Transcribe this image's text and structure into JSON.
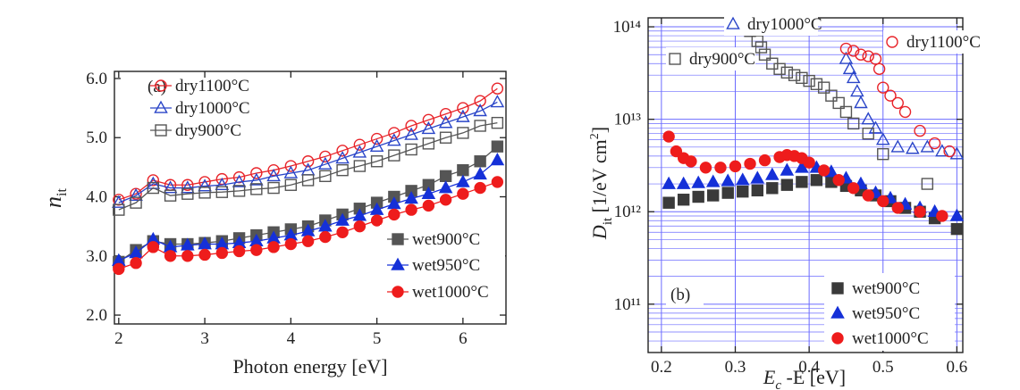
{
  "chart_data": [
    {
      "type": "line",
      "annotation": "(a)",
      "xlabel": "Photon energy [eV]",
      "ylabel": "n",
      "ylabel_sub": "it",
      "xlim": [
        1.95,
        6.5
      ],
      "ylim": [
        1.85,
        6.12
      ],
      "xticks": [
        2,
        3,
        4,
        5,
        6
      ],
      "yticks": [
        {
          "value": 2,
          "label": "2.0"
        },
        {
          "value": 3,
          "label": "3.0"
        },
        {
          "value": 4,
          "label": "4.0"
        },
        {
          "value": 5,
          "label": "5.0"
        },
        {
          "value": 6,
          "label": "6.0"
        }
      ],
      "grid": false,
      "x": [
        2.0,
        2.2,
        2.4,
        2.6,
        2.8,
        3.0,
        3.2,
        3.4,
        3.6,
        3.8,
        4.0,
        4.2,
        4.4,
        4.6,
        4.8,
        5.0,
        5.2,
        5.4,
        5.6,
        5.8,
        6.0,
        6.2,
        6.4
      ],
      "series": [
        {
          "name": "dry1100°C",
          "color": "#e8242a",
          "marker": "circle",
          "filled": false,
          "values": [
            3.95,
            4.05,
            4.28,
            4.2,
            4.2,
            4.25,
            4.3,
            4.33,
            4.4,
            4.45,
            4.52,
            4.6,
            4.68,
            4.78,
            4.88,
            4.98,
            5.08,
            5.2,
            5.3,
            5.4,
            5.5,
            5.62,
            5.83
          ]
        },
        {
          "name": "dry1000°C",
          "color": "#2a45c8",
          "marker": "triangle",
          "filled": false,
          "values": [
            3.9,
            4.02,
            4.22,
            4.15,
            4.15,
            4.18,
            4.2,
            4.25,
            4.28,
            4.35,
            4.4,
            4.45,
            4.55,
            4.65,
            4.75,
            4.85,
            4.95,
            5.05,
            5.15,
            5.25,
            5.35,
            5.45,
            5.6
          ]
        },
        {
          "name": "dry900°C",
          "color": "#555555",
          "marker": "square",
          "filled": false,
          "values": [
            3.78,
            3.9,
            4.15,
            4.02,
            4.05,
            4.07,
            4.08,
            4.1,
            4.13,
            4.15,
            4.2,
            4.28,
            4.35,
            4.45,
            4.52,
            4.6,
            4.7,
            4.8,
            4.9,
            5.0,
            5.08,
            5.2,
            5.25
          ]
        },
        {
          "name": "wet900°C",
          "color": "#555555",
          "marker": "square",
          "filled": true,
          "values": [
            2.9,
            3.1,
            3.25,
            3.2,
            3.2,
            3.22,
            3.25,
            3.3,
            3.35,
            3.4,
            3.45,
            3.5,
            3.6,
            3.7,
            3.8,
            3.9,
            4.0,
            4.1,
            4.2,
            4.35,
            4.45,
            4.6,
            4.85
          ]
        },
        {
          "name": "wet950°C",
          "color": "#1530d8",
          "marker": "triangle",
          "filled": true,
          "values": [
            2.92,
            3.05,
            3.28,
            3.15,
            3.18,
            3.2,
            3.2,
            3.22,
            3.25,
            3.3,
            3.35,
            3.42,
            3.5,
            3.6,
            3.68,
            3.78,
            3.88,
            3.97,
            4.05,
            4.15,
            4.25,
            4.38,
            4.62
          ]
        },
        {
          "name": "wet1000°C",
          "color": "#ee1c1c",
          "marker": "circle",
          "filled": true,
          "values": [
            2.78,
            2.88,
            3.15,
            3.0,
            3.0,
            3.02,
            3.05,
            3.08,
            3.1,
            3.15,
            3.2,
            3.25,
            3.32,
            3.4,
            3.5,
            3.6,
            3.7,
            3.78,
            3.85,
            3.95,
            4.05,
            4.15,
            4.25
          ]
        }
      ]
    },
    {
      "type": "scatter",
      "annotation": "(b)",
      "xlabel": "E",
      "xlabel_sub": "c",
      "xlabel_rest": " -E [eV]",
      "ylabel": "D",
      "ylabel_sub": "it",
      "ylabel_rest": " [1/eV cm",
      "ylabel_sup": "2",
      "ylabel_end": "]",
      "xlim": [
        0.182,
        0.608
      ],
      "ylim": [
        30000000000,
        125000000000000
      ],
      "log_y": true,
      "xticks": [
        0.2,
        0.3,
        0.4,
        0.5,
        0.6
      ],
      "yticks": [
        {
          "value": 100000000000,
          "label": "10¹¹"
        },
        {
          "value": 1000000000000,
          "label": "10¹²"
        },
        {
          "value": 10000000000000,
          "label": "10¹³"
        },
        {
          "value": 100000000000000,
          "label": "10¹⁴"
        }
      ],
      "grid": true,
      "grid_color": "#6b6bff",
      "series": [
        {
          "name": "dry1000°C",
          "color": "#2a45c8",
          "marker": "triangle",
          "filled": false,
          "x": [
            0.45,
            0.455,
            0.46,
            0.465,
            0.47,
            0.48,
            0.49,
            0.5,
            0.52,
            0.54,
            0.56,
            0.58,
            0.6
          ],
          "values": [
            45000000000000,
            35000000000000,
            28000000000000,
            20000000000000,
            15000000000000,
            10000000000000,
            8000000000000,
            6000000000000,
            5000000000000,
            4800000000000,
            5000000000000,
            4500000000000,
            4200000000000
          ]
        },
        {
          "name": "dry1100°C",
          "color": "#e8242a",
          "marker": "circle",
          "filled": false,
          "x": [
            0.45,
            0.46,
            0.47,
            0.48,
            0.49,
            0.495,
            0.5,
            0.51,
            0.52,
            0.53,
            0.55,
            0.57,
            0.59
          ],
          "values": [
            58000000000000,
            55000000000000,
            50000000000000,
            48000000000000,
            45000000000000,
            35000000000000,
            22000000000000,
            18000000000000,
            15000000000000,
            12000000000000,
            7500000000000,
            5500000000000,
            4500000000000
          ]
        },
        {
          "name": "dry900°C",
          "color": "#555555",
          "marker": "square",
          "filled": false,
          "x": [
            0.32,
            0.33,
            0.335,
            0.34,
            0.35,
            0.36,
            0.37,
            0.38,
            0.39,
            0.4,
            0.41,
            0.42,
            0.43,
            0.44,
            0.45,
            0.46,
            0.48,
            0.5,
            0.56
          ],
          "values": [
            90000000000000,
            70000000000000,
            60000000000000,
            50000000000000,
            40000000000000,
            35000000000000,
            32000000000000,
            30000000000000,
            28000000000000,
            26000000000000,
            24000000000000,
            22000000000000,
            18000000000000,
            15000000000000,
            12000000000000,
            9000000000000,
            7000000000000,
            4200000000000,
            2000000000000
          ]
        },
        {
          "name": "wet900°C",
          "color": "#3a3a3a",
          "marker": "square",
          "filled": true,
          "x": [
            0.21,
            0.23,
            0.25,
            0.27,
            0.29,
            0.31,
            0.33,
            0.35,
            0.37,
            0.39,
            0.41,
            0.43,
            0.45,
            0.47,
            0.49,
            0.51,
            0.53,
            0.55,
            0.57,
            0.6
          ],
          "values": [
            1250000000000,
            1350000000000,
            1450000000000,
            1500000000000,
            1600000000000,
            1650000000000,
            1700000000000,
            1800000000000,
            1950000000000,
            2100000000000,
            2200000000000,
            2100000000000,
            1900000000000,
            1700000000000,
            1500000000000,
            1300000000000,
            1100000000000,
            1000000000000,
            850000000000,
            650000000000
          ]
        },
        {
          "name": "wet950°C",
          "color": "#1530d8",
          "marker": "triangle",
          "filled": true,
          "x": [
            0.21,
            0.23,
            0.25,
            0.27,
            0.29,
            0.31,
            0.33,
            0.35,
            0.37,
            0.39,
            0.41,
            0.43,
            0.45,
            0.47,
            0.49,
            0.51,
            0.53,
            0.55,
            0.57,
            0.6
          ],
          "values": [
            2000000000000,
            2000000000000,
            2050000000000,
            2100000000000,
            2150000000000,
            2200000000000,
            2300000000000,
            2500000000000,
            2800000000000,
            3000000000000,
            3000000000000,
            2700000000000,
            2300000000000,
            2000000000000,
            1600000000000,
            1400000000000,
            1200000000000,
            1100000000000,
            1000000000000,
            900000000000
          ]
        },
        {
          "name": "wet1000°C",
          "color": "#ee1c1c",
          "marker": "circle",
          "filled": true,
          "x": [
            0.21,
            0.22,
            0.23,
            0.24,
            0.26,
            0.28,
            0.3,
            0.32,
            0.34,
            0.36,
            0.37,
            0.38,
            0.39,
            0.4,
            0.42,
            0.44,
            0.46,
            0.48,
            0.5,
            0.52,
            0.55,
            0.58
          ],
          "values": [
            6500000000000,
            4500000000000,
            3800000000000,
            3500000000000,
            3000000000000,
            3000000000000,
            3100000000000,
            3300000000000,
            3600000000000,
            3900000000000,
            4100000000000,
            4000000000000,
            3800000000000,
            3400000000000,
            2800000000000,
            2200000000000,
            1800000000000,
            1500000000000,
            1300000000000,
            1100000000000,
            1000000000000,
            900000000000
          ]
        }
      ]
    }
  ]
}
